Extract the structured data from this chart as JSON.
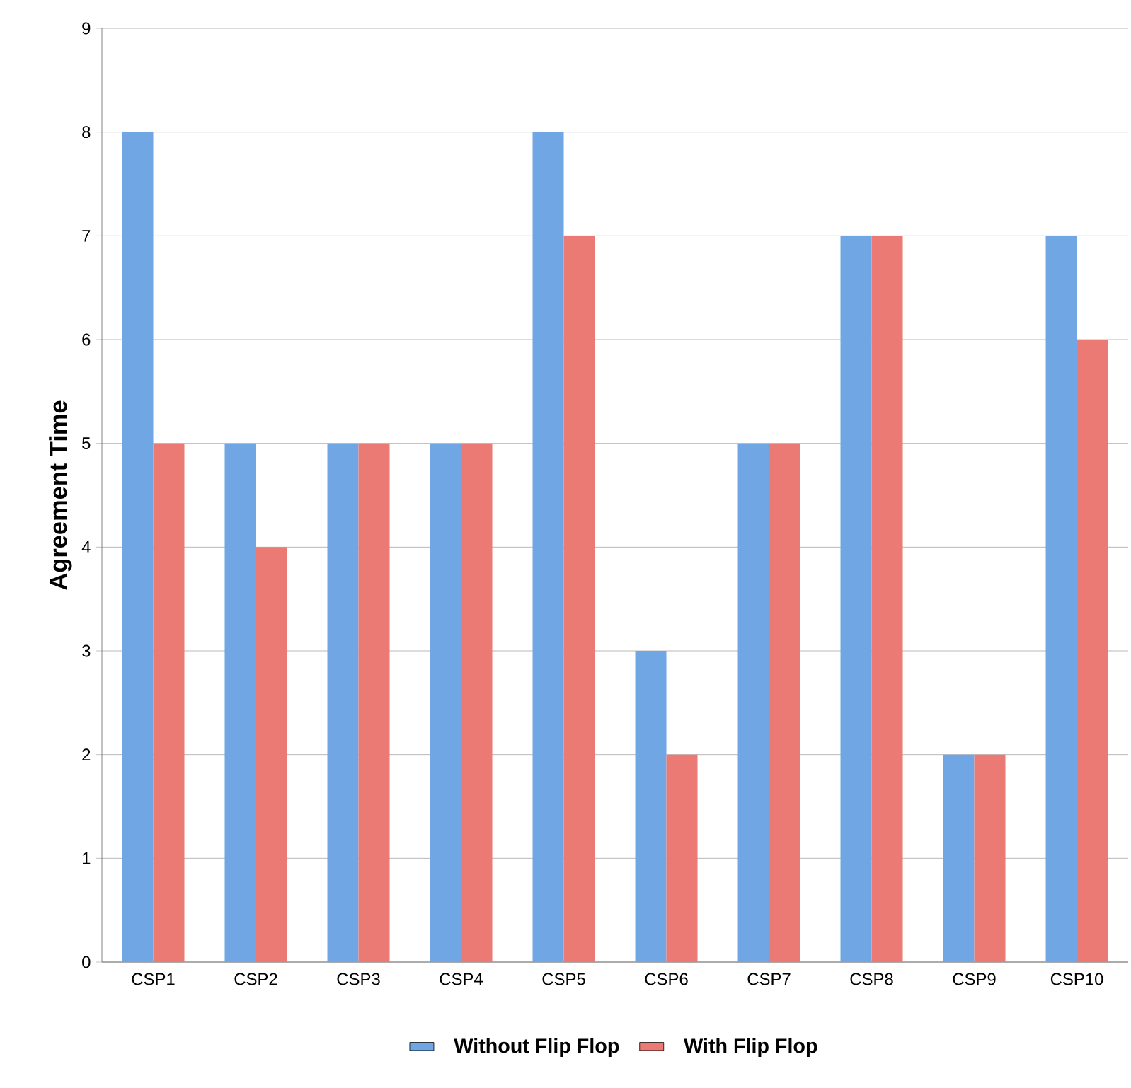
{
  "chart_data": {
    "type": "bar",
    "ylabel": "Agreement Time",
    "categories": [
      "CSP1",
      "CSP2",
      "CSP3",
      "CSP4",
      "CSP5",
      "CSP6",
      "CSP7",
      "CSP8",
      "CSP9",
      "CSP10"
    ],
    "series": [
      {
        "name": "Without Flip Flop",
        "color": "#6fa6e3",
        "values": [
          8,
          5,
          5,
          5,
          8,
          3,
          5,
          7,
          2,
          7
        ]
      },
      {
        "name": "With Flip Flop",
        "color": "#ec7a74",
        "values": [
          5,
          4,
          5,
          5,
          7,
          2,
          5,
          7,
          2,
          6
        ]
      }
    ],
    "ylim": [
      0,
      9
    ],
    "yticks": [
      0,
      1,
      2,
      3,
      4,
      5,
      6,
      7,
      8,
      9
    ],
    "grid": "y",
    "legend": "bottom"
  }
}
